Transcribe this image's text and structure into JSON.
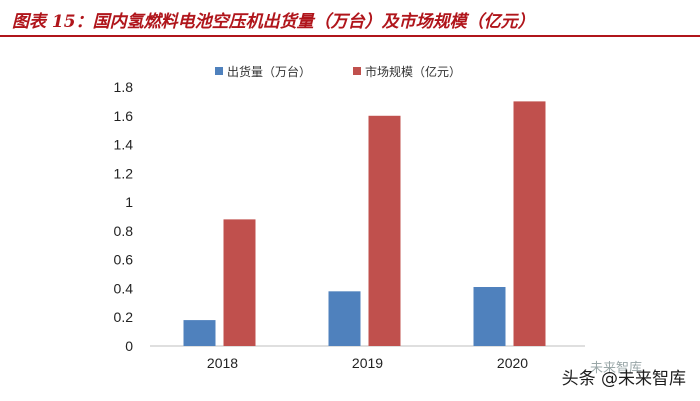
{
  "figure": {
    "title": "图表 15：国内氢燃料电池空压机出货量（万台）及市场规模（亿元）"
  },
  "watermark": {
    "text": "头条 @未来智库",
    "logo_text": "未来智库"
  },
  "chart_data": {
    "type": "bar",
    "categories": [
      "2018",
      "2019",
      "2020"
    ],
    "series": [
      {
        "name": "出货量（万台）",
        "values": [
          0.18,
          0.38,
          0.41
        ],
        "color": "#4f81bd"
      },
      {
        "name": "市场规模（亿元）",
        "values": [
          0.88,
          1.6,
          1.7
        ],
        "color": "#c0504d"
      }
    ],
    "ylim": [
      0,
      1.8
    ],
    "yticks": [
      "0",
      "0.2",
      "0.4",
      "0.6",
      "0.8",
      "1",
      "1.2",
      "1.4",
      "1.6",
      "1.8"
    ],
    "grid": false,
    "legend_position": "top"
  }
}
